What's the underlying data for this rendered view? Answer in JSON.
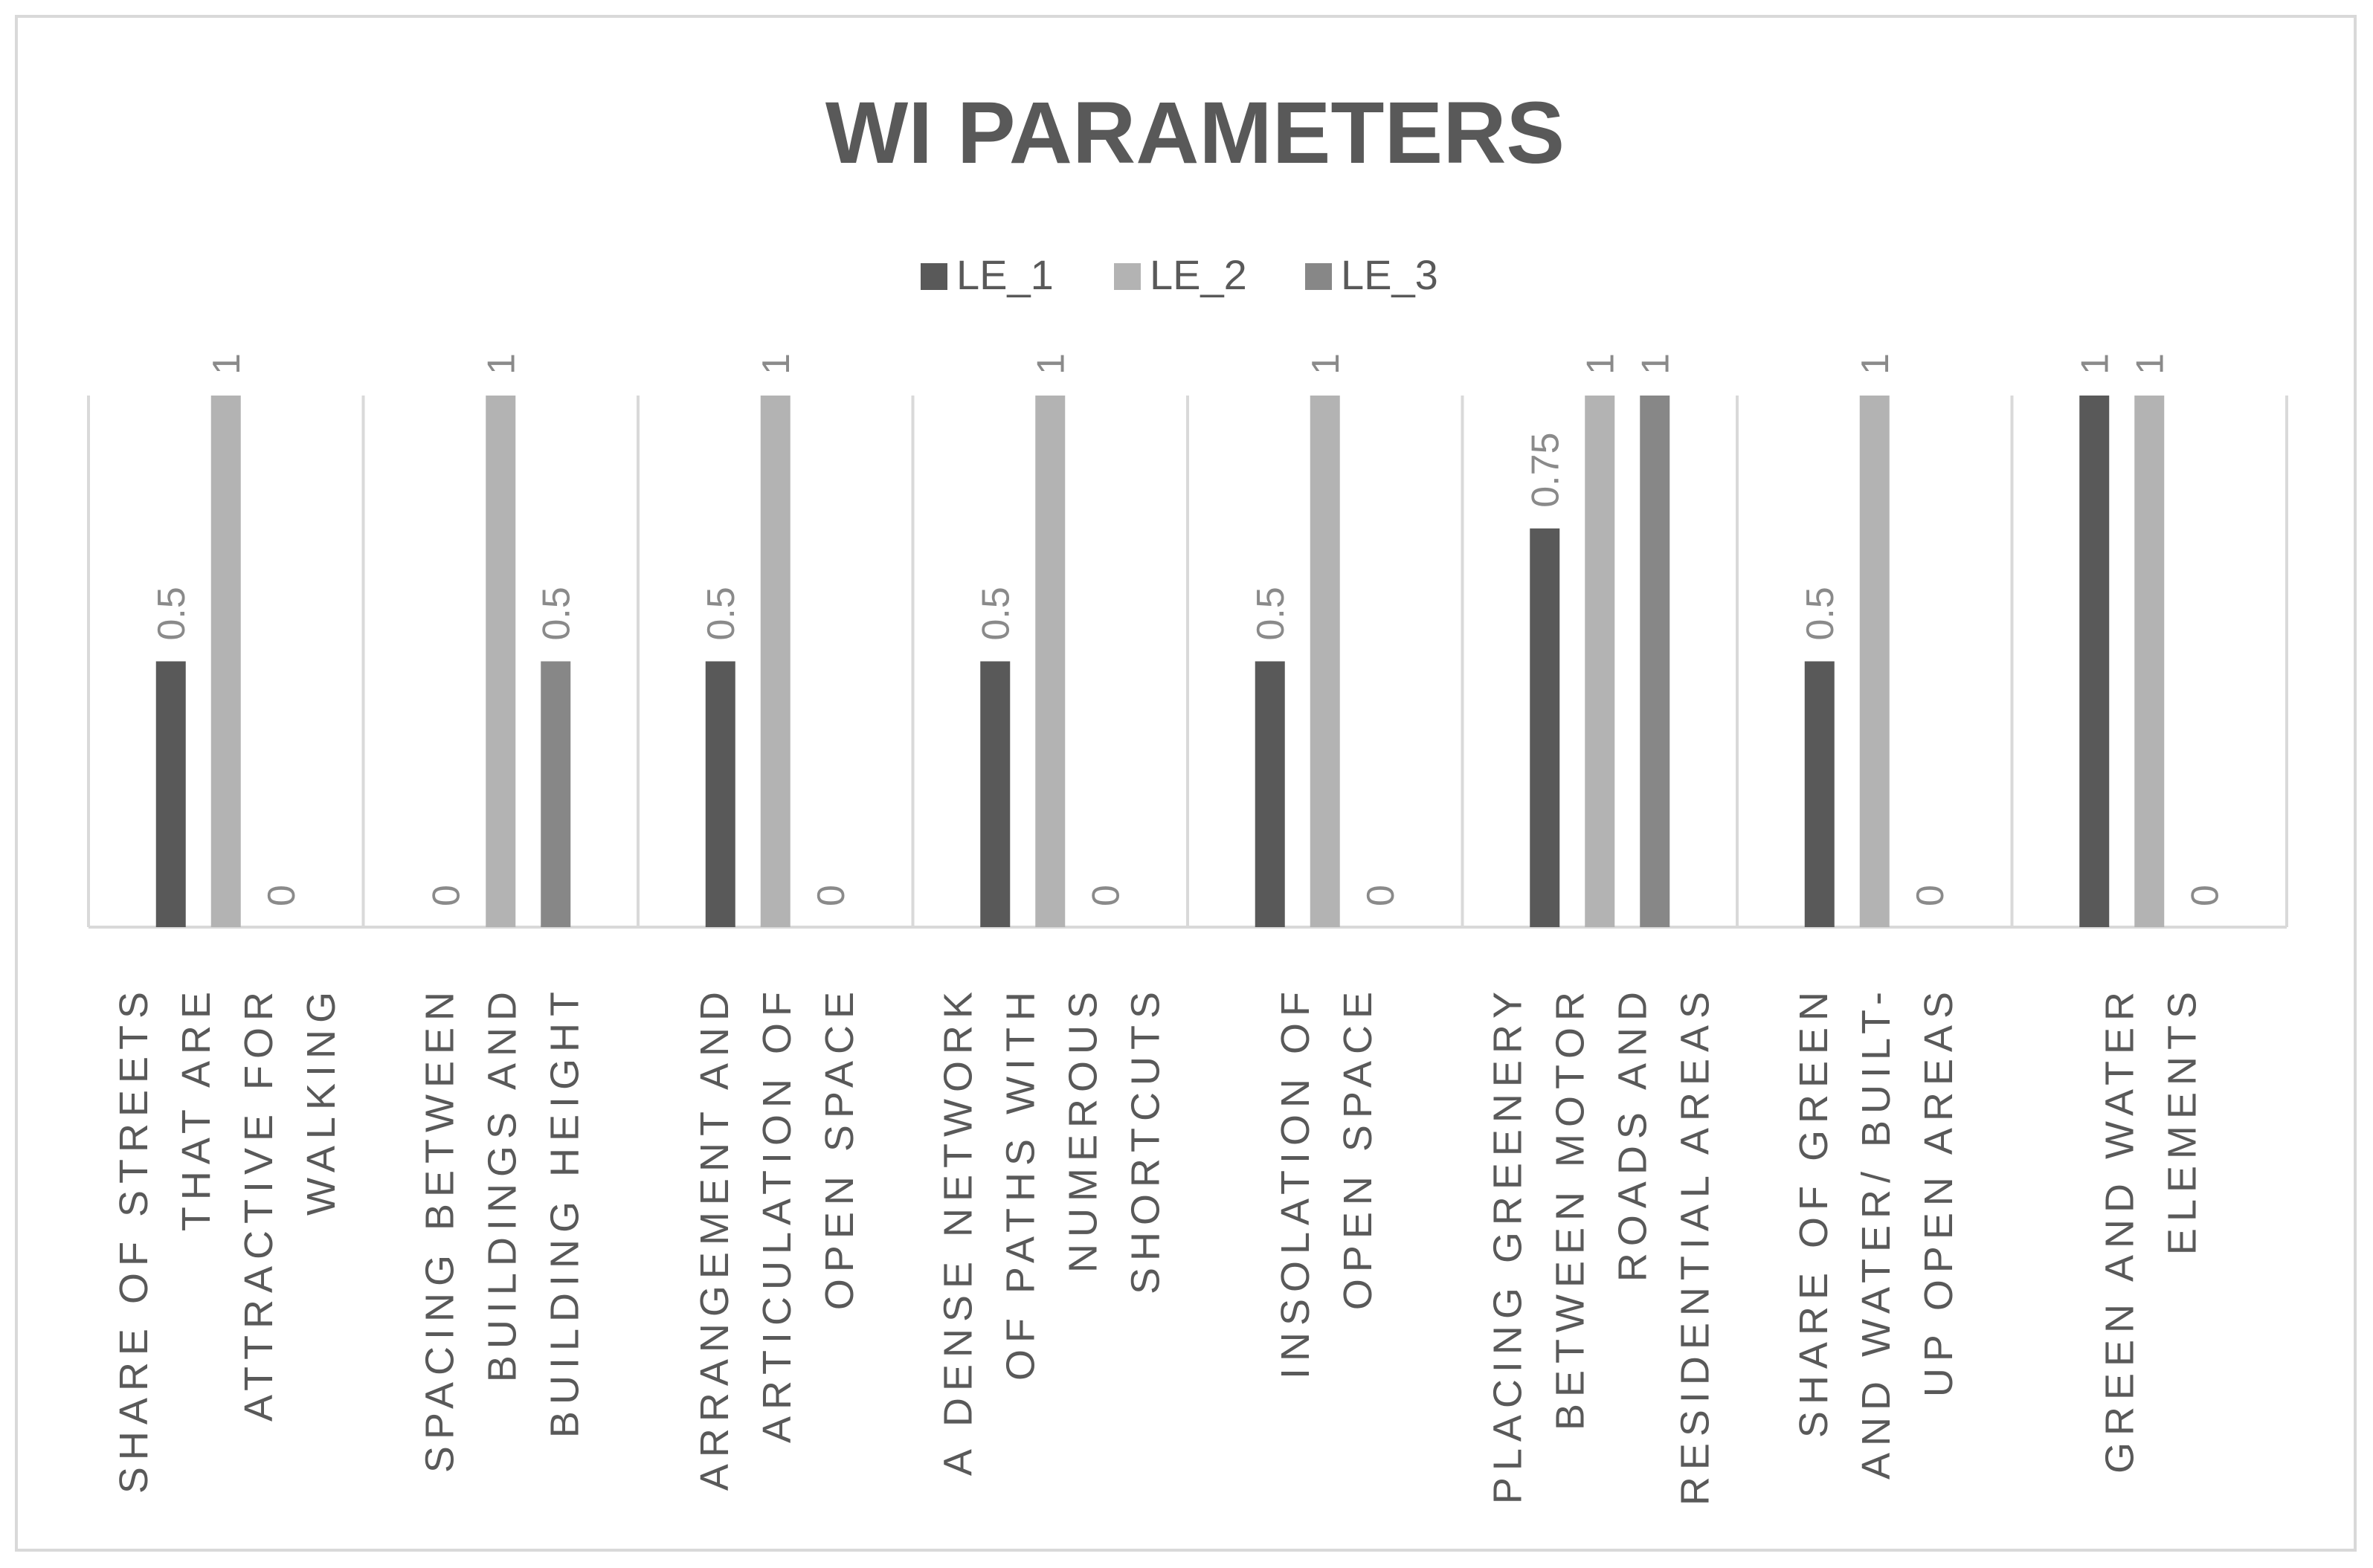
{
  "chart_data": {
    "type": "bar",
    "title": "WI PARAMETERS",
    "xlabel": "",
    "ylabel": "",
    "ylim": [
      0,
      1
    ],
    "grid": "vertical category separators",
    "legend_position": "top",
    "categories": [
      [
        "SHARE OF STREETS",
        "THAT ARE",
        "ATTRACTIVE FOR",
        "WALKING"
      ],
      [
        "SPACING BETWEEN",
        "BUILDINGS AND",
        "BUILDING HEIGHT"
      ],
      [
        "ARRANGEMENT AND",
        "ARTICULATION  OF",
        "OPEN SPACE"
      ],
      [
        "A DENSE NETWORK",
        "OF PATHS WITH",
        "NUMEROUS",
        "SHORTCUTS"
      ],
      [
        "INSOLATION OF",
        "OPEN SPACE"
      ],
      [
        "PLACING GREENERY",
        "BETWEEN MOTOR",
        "ROADS AND",
        "RESIDENTIAL AREAS"
      ],
      [
        "SHARE OF GREEN",
        "AND WATER/ BUILT-",
        "UP OPEN AREAS"
      ],
      [
        "GREEN AND WATER",
        "ELEMENTS"
      ]
    ],
    "series": [
      {
        "name": "LE_1",
        "color": "#595959",
        "values": [
          0.5,
          0,
          0.5,
          0.5,
          0.5,
          0.75,
          0.5,
          1
        ]
      },
      {
        "name": "LE_2",
        "color": "#b3b3b3",
        "values": [
          1,
          1,
          1,
          1,
          1,
          1,
          1,
          1
        ]
      },
      {
        "name": "LE_3",
        "color": "#878787",
        "values": [
          0,
          0.5,
          0,
          0,
          0,
          1,
          0,
          0
        ]
      }
    ],
    "data_labels": [
      [
        "0.5",
        "0",
        "0.5",
        "0.5",
        "0.5",
        "0.75",
        "0.5",
        ""
      ],
      [
        "1",
        "1",
        "1",
        "1",
        "1",
        "1",
        "1",
        "1"
      ],
      [
        "0",
        "0.5",
        "0",
        "0",
        "0",
        "1",
        "0",
        "0"
      ]
    ],
    "data_labels_extra": {
      "LE_1": {
        "7": "1"
      }
    }
  },
  "colors": {
    "title": "#595959",
    "text": "#595959",
    "grid": "#d9d9d9",
    "border": "#d9d9d9"
  }
}
